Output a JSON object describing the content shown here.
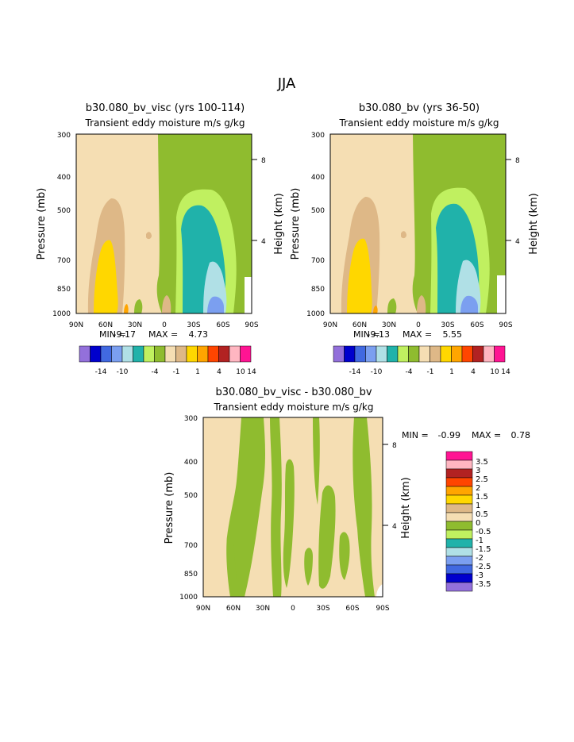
{
  "season": "JJA",
  "colors": {
    "c_m14": "#9370db",
    "c_m12": "#0000cd",
    "c_m10": "#4169e1",
    "c_m8": "#7b9ff0",
    "c_m6": "#b0e0e6",
    "c_m4": "#20b2aa",
    "c_m2": "#c0f060",
    "c_m1": "#8fbc2f",
    "c_1": "#f5deb3",
    "c_2": "#deb887",
    "c_4": "#ffd700",
    "c_6": "#ffa500",
    "c_8": "#ff4500",
    "c_10": "#b22222",
    "c_12": "#ffb6c1",
    "c_14": "#ff1493"
  },
  "panels": [
    {
      "title": "b30.080_bv_visc (yrs 100-114)",
      "subtitle": "Transient eddy moisture m/s g/kg",
      "min_label": "MIN =",
      "min_value": "-9.17",
      "max_label": "MAX =",
      "max_value": "4.73"
    },
    {
      "title": "b30.080_bv (yrs 36-50)",
      "subtitle": "Transient eddy moisture m/s g/kg",
      "min_label": "MIN =",
      "min_value": "-9.13",
      "max_label": "MAX =",
      "max_value": "5.55"
    },
    {
      "title": "b30.080_bv_visc - b30.080_bv",
      "subtitle": "Transient eddy moisture m/s g/kg",
      "min_label": "MIN =",
      "min_value": "-0.99",
      "max_label": "MAX =",
      "max_value": "0.78"
    }
  ],
  "top_colorbar_labels": [
    "-14",
    "-10",
    "-4",
    "-1",
    "1",
    "4",
    "10",
    "14"
  ],
  "diff_colorbar_labels": [
    "3.5",
    "3",
    "2.5",
    "2",
    "1.5",
    "1",
    "0.5",
    "0",
    "-0.5",
    "-1",
    "-1.5",
    "-2",
    "-2.5",
    "-3",
    "-3.5"
  ],
  "chart_data": [
    {
      "type": "heatmap",
      "title": "b30.080_bv_visc (yrs 100-114)",
      "subtitle": "Transient eddy moisture m/s g/kg",
      "xlabel": "",
      "ylabel": "Pressure (mb)",
      "y2label": "Height (km)",
      "x_ticks": [
        "90N",
        "60N",
        "30N",
        "0",
        "30S",
        "60S",
        "90S"
      ],
      "y_ticks": [
        "300",
        "400",
        "500",
        "700",
        "850",
        "1000"
      ],
      "y2_ticks": [
        "8",
        "4"
      ],
      "ylim": [
        1000,
        300
      ],
      "contour_levels": [
        -14,
        -12,
        -10,
        -8,
        -6,
        -4,
        -2,
        -1,
        1,
        2,
        4,
        6,
        8,
        10,
        12,
        14
      ],
      "min": -9.17,
      "max": 4.73
    },
    {
      "type": "heatmap",
      "title": "b30.080_bv (yrs 36-50)",
      "subtitle": "Transient eddy moisture m/s g/kg",
      "xlabel": "",
      "ylabel": "Pressure (mb)",
      "y2label": "Height (km)",
      "x_ticks": [
        "90N",
        "60N",
        "30N",
        "0",
        "30S",
        "60S",
        "90S"
      ],
      "y_ticks": [
        "300",
        "400",
        "500",
        "700",
        "850",
        "1000"
      ],
      "y2_ticks": [
        "8",
        "4"
      ],
      "ylim": [
        1000,
        300
      ],
      "contour_levels": [
        -14,
        -12,
        -10,
        -8,
        -6,
        -4,
        -2,
        -1,
        1,
        2,
        4,
        6,
        8,
        10,
        12,
        14
      ],
      "min": -9.13,
      "max": 5.55
    },
    {
      "type": "heatmap",
      "title": "b30.080_bv_visc - b30.080_bv",
      "subtitle": "Transient eddy moisture m/s g/kg",
      "xlabel": "",
      "ylabel": "Pressure (mb)",
      "y2label": "Height (km)",
      "x_ticks": [
        "90N",
        "60N",
        "30N",
        "0",
        "30S",
        "60S",
        "90S"
      ],
      "y_ticks": [
        "300",
        "400",
        "500",
        "700",
        "850",
        "1000"
      ],
      "y2_ticks": [
        "8",
        "4"
      ],
      "ylim": [
        1000,
        300
      ],
      "contour_levels": [
        -3.5,
        -3,
        -2.5,
        -2,
        -1.5,
        -1,
        -0.5,
        0,
        0.5,
        1,
        1.5,
        2,
        2.5,
        3,
        3.5
      ],
      "min": -0.99,
      "max": 0.78
    }
  ]
}
